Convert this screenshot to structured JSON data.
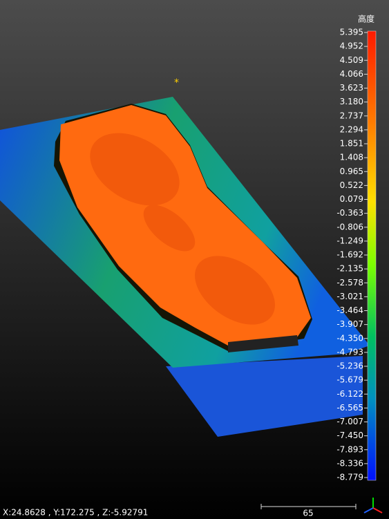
{
  "colorbar": {
    "title": "高度",
    "labels": [
      "5.395",
      "4.952",
      "4.509",
      "4.066",
      "3.623",
      "3.180",
      "2.737",
      "2.294",
      "1.851",
      "1.408",
      "0.965",
      "0.522",
      "0.079",
      "-0.363",
      "-0.806",
      "-1.249",
      "-1.692",
      "-2.135",
      "-2.578",
      "-3.021",
      "-3.464",
      "-3.907",
      "-4.350",
      "-4.793",
      "-5.236",
      "-5.679",
      "-6.122",
      "-6.565",
      "-7.007",
      "-7.450",
      "-7.893",
      "-8.336",
      "-8.779"
    ]
  },
  "status": {
    "coordinates": "X:24.8628 ,  Y:172.275 ,  Z:-5.92791",
    "scale": "65"
  }
}
